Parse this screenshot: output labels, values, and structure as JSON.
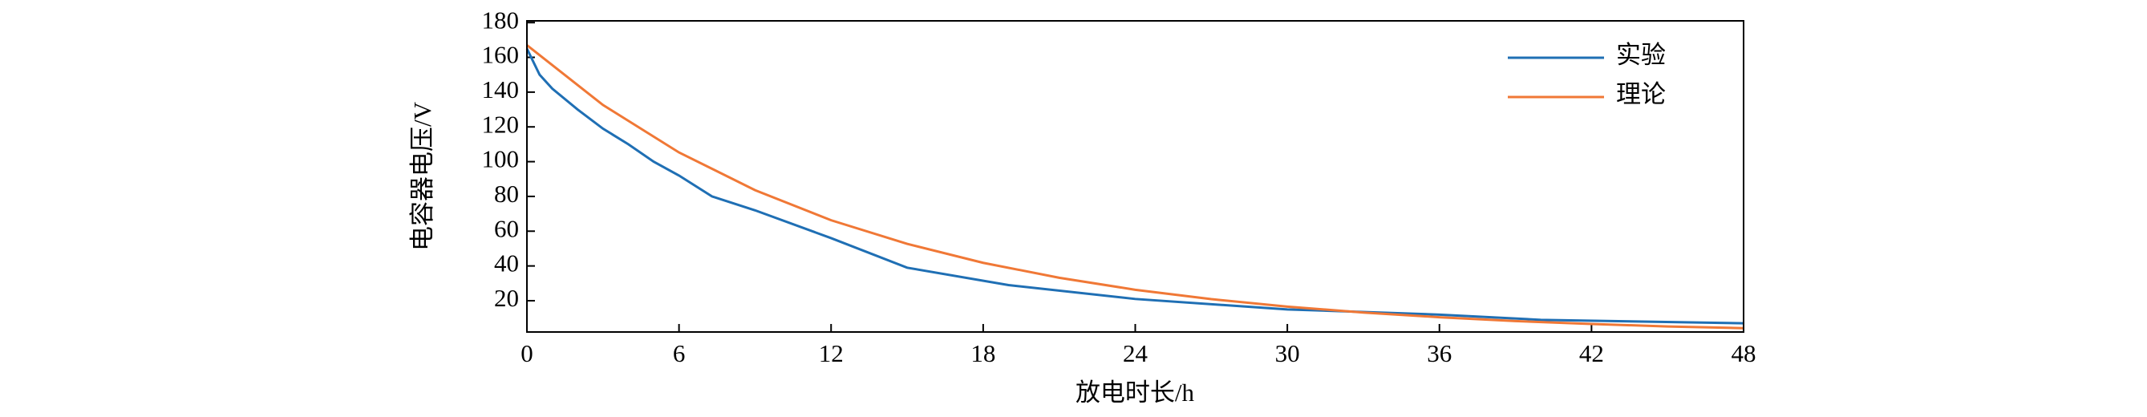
{
  "chart_data": {
    "type": "line",
    "x_label": "放电时长/h",
    "y_label": "电容器电压/V",
    "xlim": [
      0,
      48
    ],
    "xticks": [
      0,
      6,
      12,
      18,
      24,
      30,
      36,
      42,
      48
    ],
    "ylim": [
      2,
      181
    ],
    "yticks": [
      20,
      40,
      60,
      80,
      100,
      120,
      140,
      160,
      180
    ],
    "legend": "upper right",
    "series": [
      {
        "name": "实验",
        "color": "#1f6fb4",
        "x": [
          0,
          0.5,
          1,
          2,
          3,
          4,
          5,
          6,
          7.3,
          9,
          12,
          15,
          19,
          24,
          30,
          36,
          40,
          48
        ],
        "values": [
          165,
          150,
          142,
          130,
          119,
          110,
          100,
          92,
          80,
          72,
          56,
          39,
          29,
          21,
          15,
          12,
          9,
          7
        ]
      },
      {
        "name": "理论",
        "color": "#f07836",
        "x": [
          0,
          3,
          6,
          9,
          12,
          15,
          18,
          21,
          24,
          27,
          30,
          33,
          36,
          39,
          42,
          45,
          48
        ],
        "values": [
          167,
          132.6,
          105.3,
          83.6,
          66.3,
          52.7,
          41.8,
          33.2,
          26.3,
          20.9,
          16.6,
          13.2,
          10.5,
          8.3,
          6.6,
          5.2,
          4.2
        ]
      }
    ]
  }
}
